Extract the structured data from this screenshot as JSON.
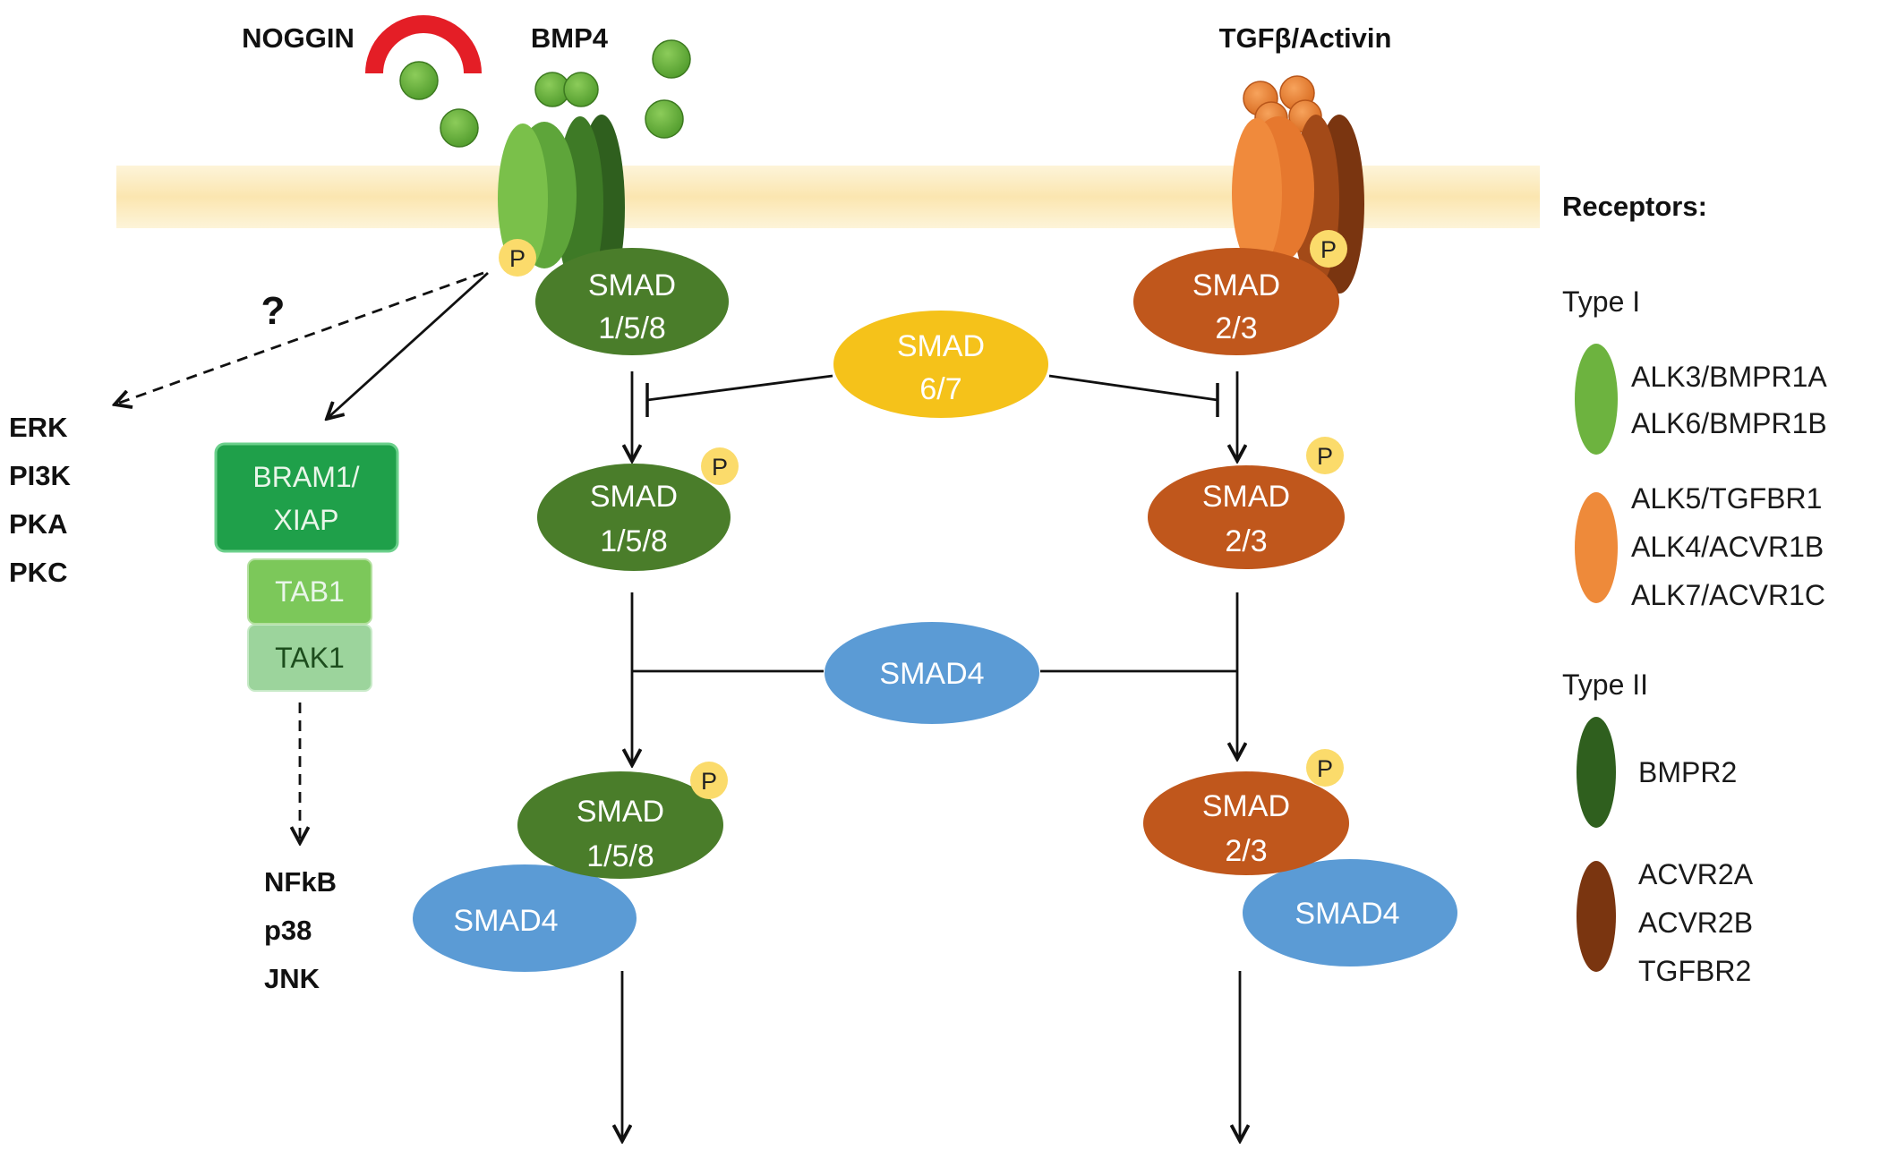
{
  "ligands": {
    "noggin": "NOGGIN",
    "bmp4": "BMP4",
    "tgfb": "TGFβ/Activin"
  },
  "unknown_mark": "?",
  "phospho": "P",
  "noncanonical_targets": [
    "ERK",
    "PI3K",
    "PKA",
    "PKC"
  ],
  "adaptor_stack": {
    "bram1_line1": "BRAM1/",
    "bram1_line2": "XIAP",
    "tab1": "TAB1",
    "tak1": "TAK1"
  },
  "downstream_targets": [
    "NFkB",
    "p38",
    "JNK"
  ],
  "smad_bmp": {
    "line1": "SMAD",
    "line2": "1/5/8"
  },
  "smad_tgf": {
    "line1": "SMAD",
    "line2": "2/3"
  },
  "smad_inhib": {
    "line1": "SMAD",
    "line2": "6/7"
  },
  "smad4": "SMAD4",
  "legend": {
    "title": "Receptors:",
    "type1_heading": "Type I",
    "type2_heading": "Type II",
    "type1_bmp": [
      "ALK3/BMPR1A",
      "ALK6/BMPR1B"
    ],
    "type1_tgf": [
      "ALK5/TGFBR1",
      "ALK4/ACVR1B",
      "ALK7/ACVR1C"
    ],
    "type2_bmp": [
      "BMPR2"
    ],
    "type2_tgf": [
      "ACVR2A",
      "ACVR2B",
      "TGFBR2"
    ]
  },
  "colors": {
    "bmp_light": "#6db33f",
    "bmp_dark": "#2f5f1e",
    "smad158": "#4a7d2a",
    "tgf_light": "#ee8a3a",
    "tgf_dark": "#7a3510",
    "smad23": "#c0571c",
    "smad67": "#f5c21a",
    "smad4": "#5b9bd5",
    "phospho": "#fbdb6b",
    "noggin": "#e41e26",
    "membrane": "#fbe9b8"
  }
}
